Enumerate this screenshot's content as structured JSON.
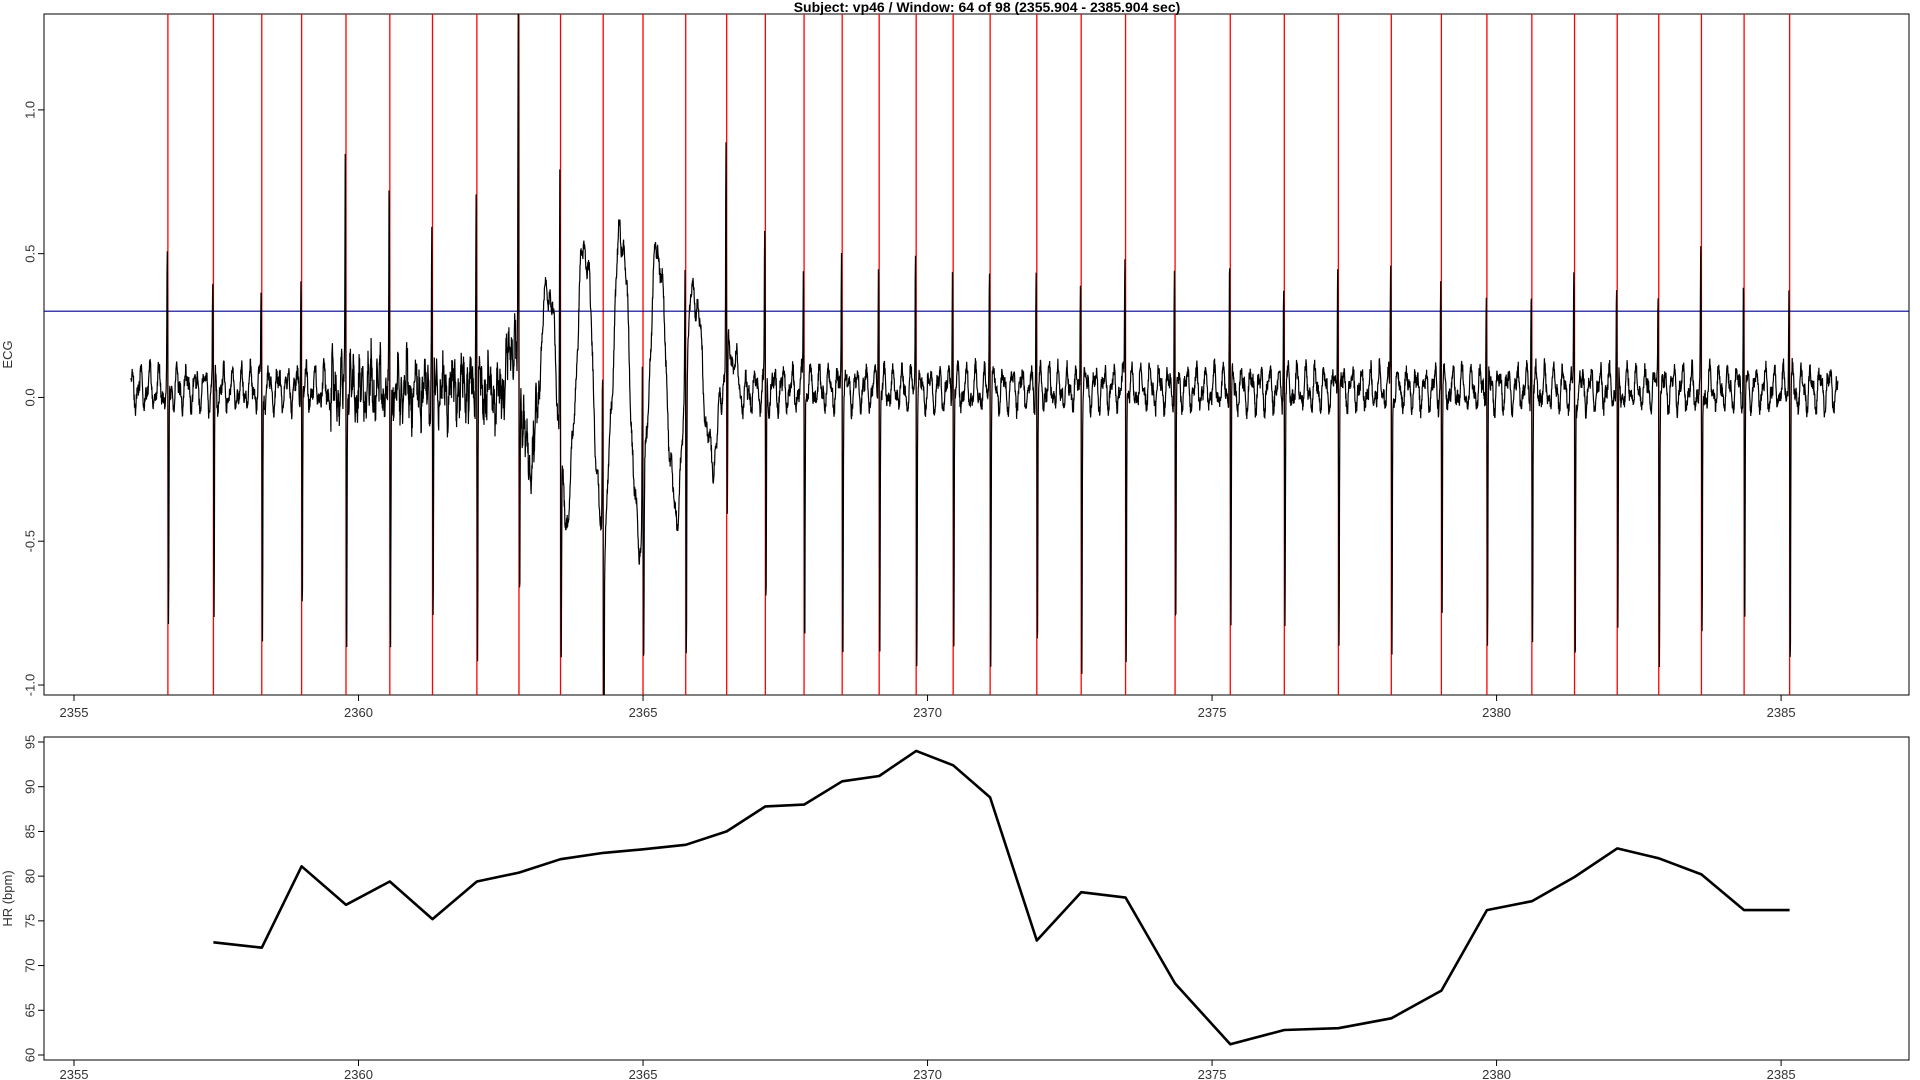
{
  "title": "Subject: vp46 / Window: 64 of 98 (2355.904 - 2385.904 sec)",
  "chart_data": [
    {
      "type": "line",
      "name": "ecg-panel",
      "ylabel": "ECG",
      "xlim": [
        2355,
        2386
      ],
      "ylim": [
        -1.0,
        1.25
      ],
      "x_ticks": [
        2355,
        2360,
        2365,
        2370,
        2375,
        2380,
        2385
      ],
      "y_ticks": [
        -1.0,
        -0.5,
        0.0,
        0.5,
        1.0
      ],
      "y_tick_labels": [
        "-1.0",
        "-0.5",
        "0.0",
        "0.5",
        "1.0"
      ],
      "threshold": 0.3,
      "threshold_color": "#00008b",
      "beat_line_color": "#ff0000",
      "signal_color": "#000000",
      "signal_start": 2356.0,
      "signal_end": 2386.0,
      "r_peaks": [
        2356.65,
        2357.45,
        2358.3,
        2359.0,
        2359.78,
        2360.55,
        2361.3,
        2362.08,
        2362.82,
        2363.55,
        2364.3,
        2365.0,
        2365.75,
        2366.47,
        2367.15,
        2367.83,
        2368.5,
        2369.15,
        2369.8,
        2370.45,
        2371.1,
        2371.92,
        2372.7,
        2373.48,
        2374.35,
        2375.32,
        2376.27,
        2377.22,
        2378.15,
        2379.03,
        2379.83,
        2380.62,
        2381.37,
        2382.12,
        2382.85,
        2383.6,
        2384.35,
        2385.15
      ],
      "peak_heights": [
        0.42,
        0.38,
        0.35,
        0.44,
        0.82,
        0.57,
        0.53,
        0.7,
        1.24,
        0.97,
        0.6,
        0.58,
        0.45,
        0.75,
        0.55,
        0.43,
        0.47,
        0.5,
        0.52,
        0.49,
        0.46,
        0.43,
        0.42,
        0.48,
        0.44,
        0.5,
        0.37,
        0.48,
        0.45,
        0.37,
        0.36,
        0.37,
        0.4,
        0.34,
        0.34,
        0.41,
        0.39,
        0.39
      ],
      "trough_depths": [
        -0.87,
        -0.82,
        -0.87,
        -0.76,
        -0.89,
        -0.88,
        -0.83,
        -0.83,
        -0.7,
        -0.69,
        -0.85,
        -0.55,
        -0.91,
        -0.65,
        -0.77,
        -0.84,
        -0.88,
        -0.89,
        -0.9,
        -0.92,
        -0.92,
        -0.9,
        -0.91,
        -0.89,
        -0.88,
        -0.85,
        -0.83,
        -0.82,
        -0.9,
        -0.84,
        -0.93,
        -0.87,
        -0.95,
        -0.93,
        -0.89,
        -0.87,
        -0.87,
        -0.93
      ]
    },
    {
      "type": "line",
      "name": "hr-panel",
      "ylabel": "HR (bpm)",
      "xlim": [
        2355,
        2386
      ],
      "ylim": [
        60,
        95
      ],
      "x_ticks": [
        2355,
        2360,
        2365,
        2370,
        2375,
        2380,
        2385
      ],
      "y_ticks": [
        60,
        65,
        70,
        75,
        80,
        85,
        90,
        95
      ],
      "line_color": "#000000",
      "x": [
        2357.45,
        2358.3,
        2359.0,
        2359.78,
        2360.55,
        2361.3,
        2362.08,
        2362.82,
        2363.55,
        2364.3,
        2365.0,
        2365.75,
        2366.47,
        2367.15,
        2367.83,
        2368.5,
        2369.15,
        2369.8,
        2370.45,
        2371.1,
        2371.92,
        2372.7,
        2373.48,
        2374.35,
        2375.32,
        2376.27,
        2377.22,
        2378.15,
        2379.03,
        2379.83,
        2380.62,
        2381.37,
        2382.12,
        2382.85,
        2383.6,
        2384.35,
        2385.15
      ],
      "y": [
        72.6,
        72.0,
        81.1,
        76.8,
        79.4,
        75.2,
        79.4,
        80.4,
        81.9,
        82.6,
        83.0,
        83.5,
        85.0,
        87.8,
        88.0,
        90.6,
        91.2,
        94.0,
        92.4,
        88.8,
        72.8,
        78.2,
        77.6,
        68.0,
        61.2,
        62.8,
        63.0,
        64.1,
        67.2,
        76.2,
        77.2,
        79.9,
        83.1,
        82.0,
        80.2,
        76.2,
        76.2
      ]
    }
  ]
}
